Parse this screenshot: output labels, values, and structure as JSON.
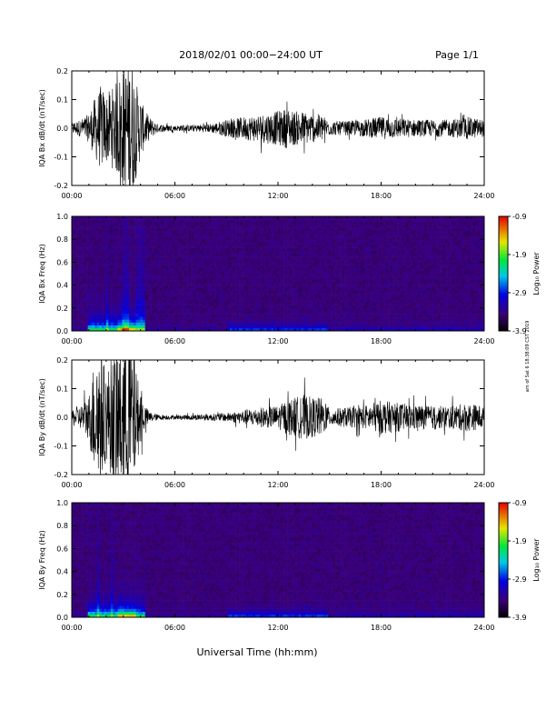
{
  "header": {
    "title": "2018/02/01   00:00−24:00 UT",
    "page": "Page 1/1"
  },
  "footer": {
    "xlabel": "Universal Time (hh:mm)",
    "side_text": "am of Sat 6 18:38:09 CST 2019"
  },
  "chart_data": [
    {
      "type": "line",
      "ylabel": "IQA Bx dB/dt (nT/sec)",
      "xlim": [
        0,
        24
      ],
      "ylim": [
        -0.2,
        0.2
      ],
      "xticks": [
        "00:00",
        "06:00",
        "12:00",
        "18:00",
        "24:00"
      ],
      "yticks": [
        "-0.2",
        "-0.1",
        "0.0",
        "0.1",
        "0.2"
      ],
      "color": "#000000",
      "amplitude_envelope": {
        "hours": [
          0,
          0.5,
          1,
          1.3,
          1.7,
          2,
          2.5,
          3,
          3.5,
          3.8,
          4.2,
          4.5,
          5,
          6,
          7,
          8,
          9,
          10,
          11,
          12,
          12.5,
          13,
          13.5,
          14,
          14.5,
          15,
          16,
          17,
          18,
          19,
          20,
          21,
          22,
          23,
          24
        ],
        "nT_per_sec": [
          0.02,
          0.03,
          0.05,
          0.1,
          0.15,
          0.12,
          0.15,
          0.22,
          0.25,
          0.15,
          0.07,
          0.04,
          0.015,
          0.01,
          0.012,
          0.015,
          0.03,
          0.04,
          0.05,
          0.06,
          0.07,
          0.06,
          0.06,
          0.05,
          0.05,
          0.025,
          0.025,
          0.03,
          0.04,
          0.035,
          0.03,
          0.03,
          0.03,
          0.04,
          0.03
        ]
      }
    },
    {
      "type": "heatmap",
      "ylabel": "IQA Bx Freq (Hz)",
      "xlim": [
        0,
        24
      ],
      "ylim": [
        0,
        1
      ],
      "xticks": [
        "00:00",
        "06:00",
        "12:00",
        "18:00",
        "24:00"
      ],
      "yticks": [
        "0.0",
        "0.2",
        "0.4",
        "0.6",
        "0.8",
        "1.0"
      ],
      "colorbar": {
        "label": "Log₁₀ Power",
        "ticks": [
          "-0.9",
          "-1.9",
          "-2.9",
          "-3.9"
        ],
        "range": [
          -3.9,
          -0.9
        ]
      }
    },
    {
      "type": "line",
      "ylabel": "IQA By dB/dt (nT/sec)",
      "xlim": [
        0,
        24
      ],
      "ylim": [
        -0.2,
        0.2
      ],
      "xticks": [
        "00:00",
        "06:00",
        "12:00",
        "18:00",
        "24:00"
      ],
      "yticks": [
        "-0.2",
        "-0.1",
        "0.0",
        "0.1",
        "0.2"
      ],
      "color": "#000000",
      "amplitude_envelope": {
        "hours": [
          0,
          0.5,
          1,
          1.3,
          1.7,
          2,
          2.5,
          3,
          3.5,
          3.8,
          4.2,
          4.5,
          5,
          6,
          7,
          8,
          9,
          10,
          11,
          12,
          12.5,
          13,
          13.5,
          14,
          14.5,
          15,
          16,
          17,
          18,
          19,
          20,
          21,
          22,
          23,
          24
        ],
        "nT_per_sec": [
          0.03,
          0.04,
          0.08,
          0.2,
          0.25,
          0.15,
          0.25,
          0.28,
          0.3,
          0.15,
          0.05,
          0.02,
          0.01,
          0.007,
          0.01,
          0.012,
          0.015,
          0.025,
          0.035,
          0.04,
          0.06,
          0.07,
          0.08,
          0.07,
          0.07,
          0.03,
          0.035,
          0.04,
          0.06,
          0.05,
          0.045,
          0.04,
          0.04,
          0.05,
          0.04
        ]
      }
    },
    {
      "type": "heatmap",
      "ylabel": "IQA By Freq (Hz)",
      "xlim": [
        0,
        24
      ],
      "ylim": [
        0,
        1
      ],
      "xticks": [
        "00:00",
        "06:00",
        "12:00",
        "18:00",
        "24:00"
      ],
      "yticks": [
        "0.0",
        "0.2",
        "0.4",
        "0.6",
        "0.8",
        "1.0"
      ],
      "colorbar": {
        "label": "Log₁₀ Power",
        "ticks": [
          "-0.9",
          "-1.9",
          "-2.9",
          "-3.9"
        ],
        "range": [
          -3.9,
          -0.9
        ]
      }
    }
  ]
}
